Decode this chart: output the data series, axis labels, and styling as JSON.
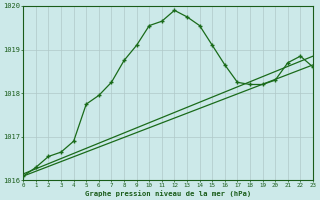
{
  "hours": [
    0,
    1,
    2,
    3,
    4,
    5,
    6,
    7,
    8,
    9,
    10,
    11,
    12,
    13,
    14,
    15,
    16,
    17,
    18,
    19,
    20,
    21,
    22,
    23
  ],
  "pressure_main": [
    1016.1,
    1016.3,
    1016.55,
    1016.65,
    1016.9,
    1017.75,
    1017.95,
    1018.25,
    1018.75,
    1019.1,
    1019.55,
    1019.65,
    1019.9,
    1019.75,
    1019.55,
    1019.1,
    1018.65,
    1018.25,
    1018.2,
    1018.2,
    1018.3,
    1018.7,
    1018.85,
    1018.6
  ],
  "line1_x": [
    0,
    23
  ],
  "line1_y": [
    1016.1,
    1018.65
  ],
  "line2_x": [
    0,
    23
  ],
  "line2_y": [
    1016.15,
    1018.85
  ],
  "ylim": [
    1016.0,
    1020.0
  ],
  "yticks": [
    1016,
    1017,
    1018,
    1019,
    1020
  ],
  "xticks": [
    0,
    1,
    2,
    3,
    4,
    5,
    6,
    7,
    8,
    9,
    10,
    11,
    12,
    13,
    14,
    15,
    16,
    17,
    18,
    19,
    20,
    21,
    22,
    23
  ],
  "line_color": "#1a6b1a",
  "bg_color": "#cce9e9",
  "grid_color": "#b0c8c8",
  "xlabel": "Graphe pression niveau de la mer (hPa)",
  "label_color": "#1a5c1a"
}
